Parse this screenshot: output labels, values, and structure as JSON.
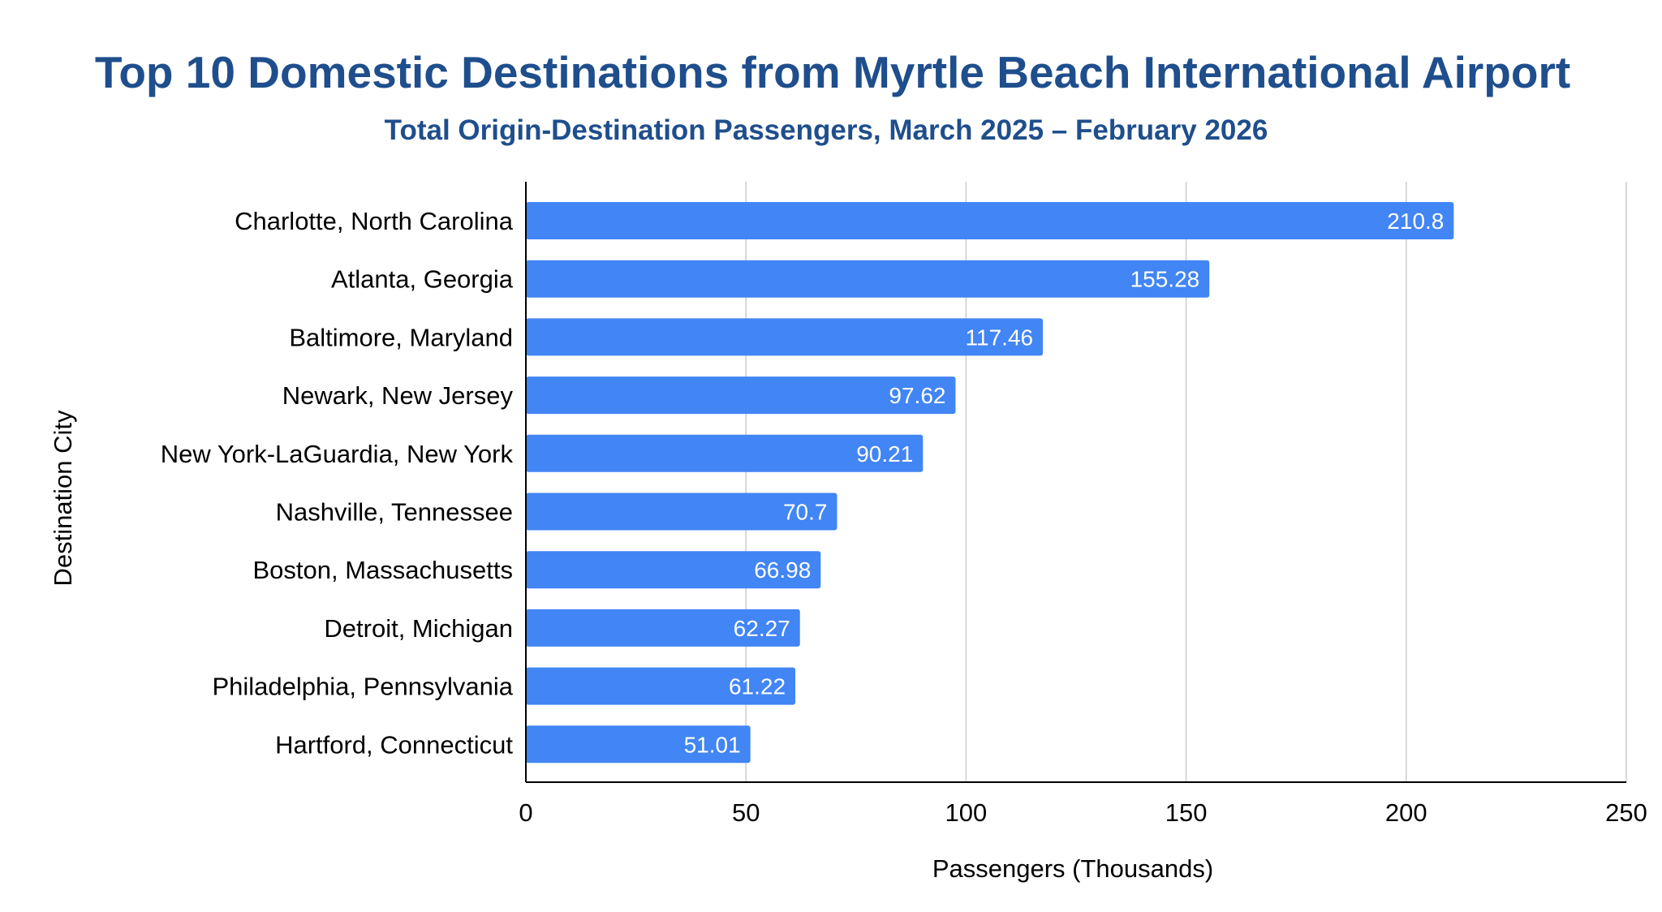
{
  "chart_data": {
    "type": "bar",
    "orientation": "horizontal",
    "title": "Top 10 Domestic Destinations from Myrtle Beach International Airport",
    "subtitle": "Total Origin-Destination Passengers, March 2025 – February 2026",
    "xlabel": "Passengers (Thousands)",
    "ylabel": "Destination City",
    "categories": [
      "Charlotte, North Carolina",
      "Atlanta, Georgia",
      "Baltimore, Maryland",
      "Newark, New Jersey",
      "New York-LaGuardia, New York",
      "Nashville, Tennessee",
      "Boston, Massachusetts",
      "Detroit, Michigan",
      "Philadelphia, Pennsylvania",
      "Hartford, Connecticut"
    ],
    "values": [
      210.8,
      155.28,
      117.46,
      97.62,
      90.21,
      70.7,
      66.98,
      62.27,
      61.22,
      51.01
    ],
    "data_labels": [
      "210.8",
      "155.28",
      "117.46",
      "97.62",
      "90.21",
      "70.7",
      "66.98",
      "62.27",
      "61.22",
      "51.01"
    ],
    "xlim": [
      0,
      250
    ],
    "xticks": [
      0,
      50,
      100,
      150,
      200,
      250
    ],
    "grid": true,
    "legend": "none",
    "colors": {
      "bar": "#4285f4",
      "title": "#1f4e8c",
      "grid": "#cccccc",
      "axis": "#000000",
      "label": "#ffffff"
    }
  }
}
